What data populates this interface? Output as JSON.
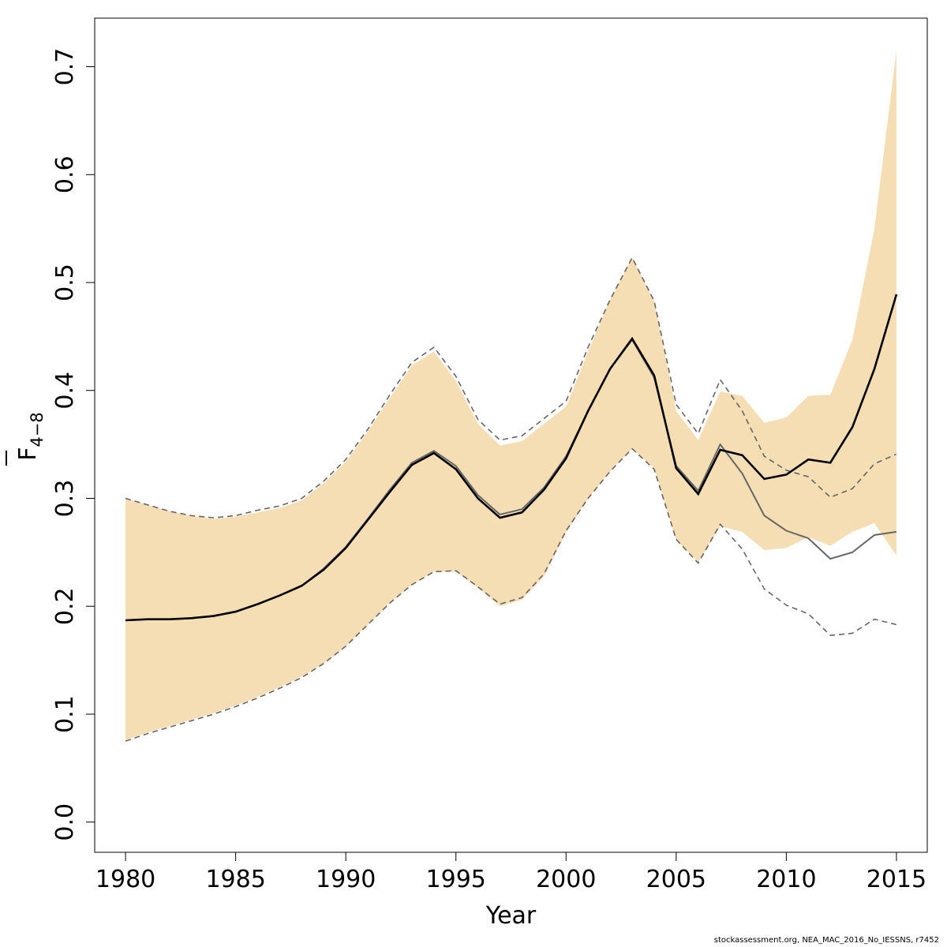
{
  "chart_data": {
    "type": "line",
    "xlabel": "Year",
    "ylabel": {
      "main": "F",
      "sub": "4−8"
    },
    "xlim": [
      1978.6,
      2016.4
    ],
    "ylim": [
      -0.028,
      0.745
    ],
    "xticks": [
      "1980",
      "1985",
      "1990",
      "1995",
      "2000",
      "2005",
      "2010",
      "2015"
    ],
    "yticks": [
      "0.0",
      "0.1",
      "0.2",
      "0.3",
      "0.4",
      "0.5",
      "0.6",
      "0.7"
    ],
    "colors": {
      "band": "#f5deb3",
      "current": "#000000",
      "previous": "#666666",
      "previous_ci": "#666666"
    },
    "x": [
      1980,
      1981,
      1982,
      1983,
      1984,
      1985,
      1986,
      1987,
      1988,
      1989,
      1990,
      1991,
      1992,
      1993,
      1994,
      1995,
      1996,
      1997,
      1998,
      1999,
      2000,
      2001,
      2002,
      2003,
      2004,
      2005,
      2006,
      2007,
      2008,
      2009,
      2010,
      2011,
      2012,
      2013,
      2014,
      2015
    ],
    "series": [
      {
        "role": "estimate",
        "values": [
          0.187,
          0.188,
          0.188,
          0.189,
          0.191,
          0.195,
          0.202,
          0.21,
          0.219,
          0.234,
          0.254,
          0.28,
          0.306,
          0.331,
          0.342,
          0.327,
          0.3,
          0.282,
          0.287,
          0.308,
          0.337,
          0.381,
          0.42,
          0.448,
          0.414,
          0.328,
          0.304,
          0.345,
          0.34,
          0.318,
          0.322,
          0.336,
          0.333,
          0.366,
          0.42,
          0.489
        ]
      },
      {
        "role": "confidence_band",
        "lower": [
          0.076,
          0.083,
          0.089,
          0.095,
          0.101,
          0.108,
          0.116,
          0.125,
          0.135,
          0.147,
          0.163,
          0.183,
          0.203,
          0.22,
          0.232,
          0.232,
          0.217,
          0.2,
          0.206,
          0.228,
          0.268,
          0.3,
          0.325,
          0.346,
          0.328,
          0.261,
          0.241,
          0.274,
          0.269,
          0.252,
          0.254,
          0.264,
          0.256,
          0.269,
          0.277,
          0.247
        ],
        "upper": [
          0.3,
          0.294,
          0.288,
          0.284,
          0.281,
          0.283,
          0.287,
          0.291,
          0.298,
          0.314,
          0.334,
          0.362,
          0.393,
          0.423,
          0.436,
          0.409,
          0.369,
          0.349,
          0.353,
          0.369,
          0.385,
          0.436,
          0.484,
          0.523,
          0.483,
          0.381,
          0.354,
          0.399,
          0.395,
          0.37,
          0.375,
          0.395,
          0.396,
          0.447,
          0.55,
          0.715
        ]
      },
      {
        "role": "previous_estimate",
        "values": [
          0.187,
          0.188,
          0.188,
          0.189,
          0.191,
          0.195,
          0.202,
          0.21,
          0.219,
          0.235,
          0.255,
          0.281,
          0.308,
          0.333,
          0.344,
          0.33,
          0.303,
          0.285,
          0.29,
          0.31,
          0.339,
          0.381,
          0.42,
          0.447,
          0.412,
          0.33,
          0.307,
          0.35,
          0.323,
          0.284,
          0.27,
          0.263,
          0.244,
          0.25,
          0.266,
          0.269
        ]
      },
      {
        "role": "previous_confidence_interval",
        "lower": [
          0.075,
          0.082,
          0.088,
          0.094,
          0.1,
          0.107,
          0.115,
          0.124,
          0.134,
          0.147,
          0.163,
          0.183,
          0.203,
          0.22,
          0.232,
          0.233,
          0.218,
          0.202,
          0.208,
          0.23,
          0.27,
          0.3,
          0.325,
          0.346,
          0.327,
          0.262,
          0.24,
          0.276,
          0.253,
          0.216,
          0.201,
          0.193,
          0.173,
          0.175,
          0.188,
          0.183
        ],
        "upper": [
          0.3,
          0.294,
          0.288,
          0.284,
          0.282,
          0.284,
          0.289,
          0.293,
          0.3,
          0.316,
          0.336,
          0.364,
          0.396,
          0.426,
          0.44,
          0.413,
          0.373,
          0.354,
          0.358,
          0.374,
          0.39,
          0.44,
          0.484,
          0.523,
          0.483,
          0.387,
          0.36,
          0.41,
          0.381,
          0.339,
          0.326,
          0.32,
          0.301,
          0.309,
          0.332,
          0.341
        ]
      }
    ]
  },
  "footer": "stockassessment.org, NEA_MAC_2016_No_IESSNS, r7452"
}
